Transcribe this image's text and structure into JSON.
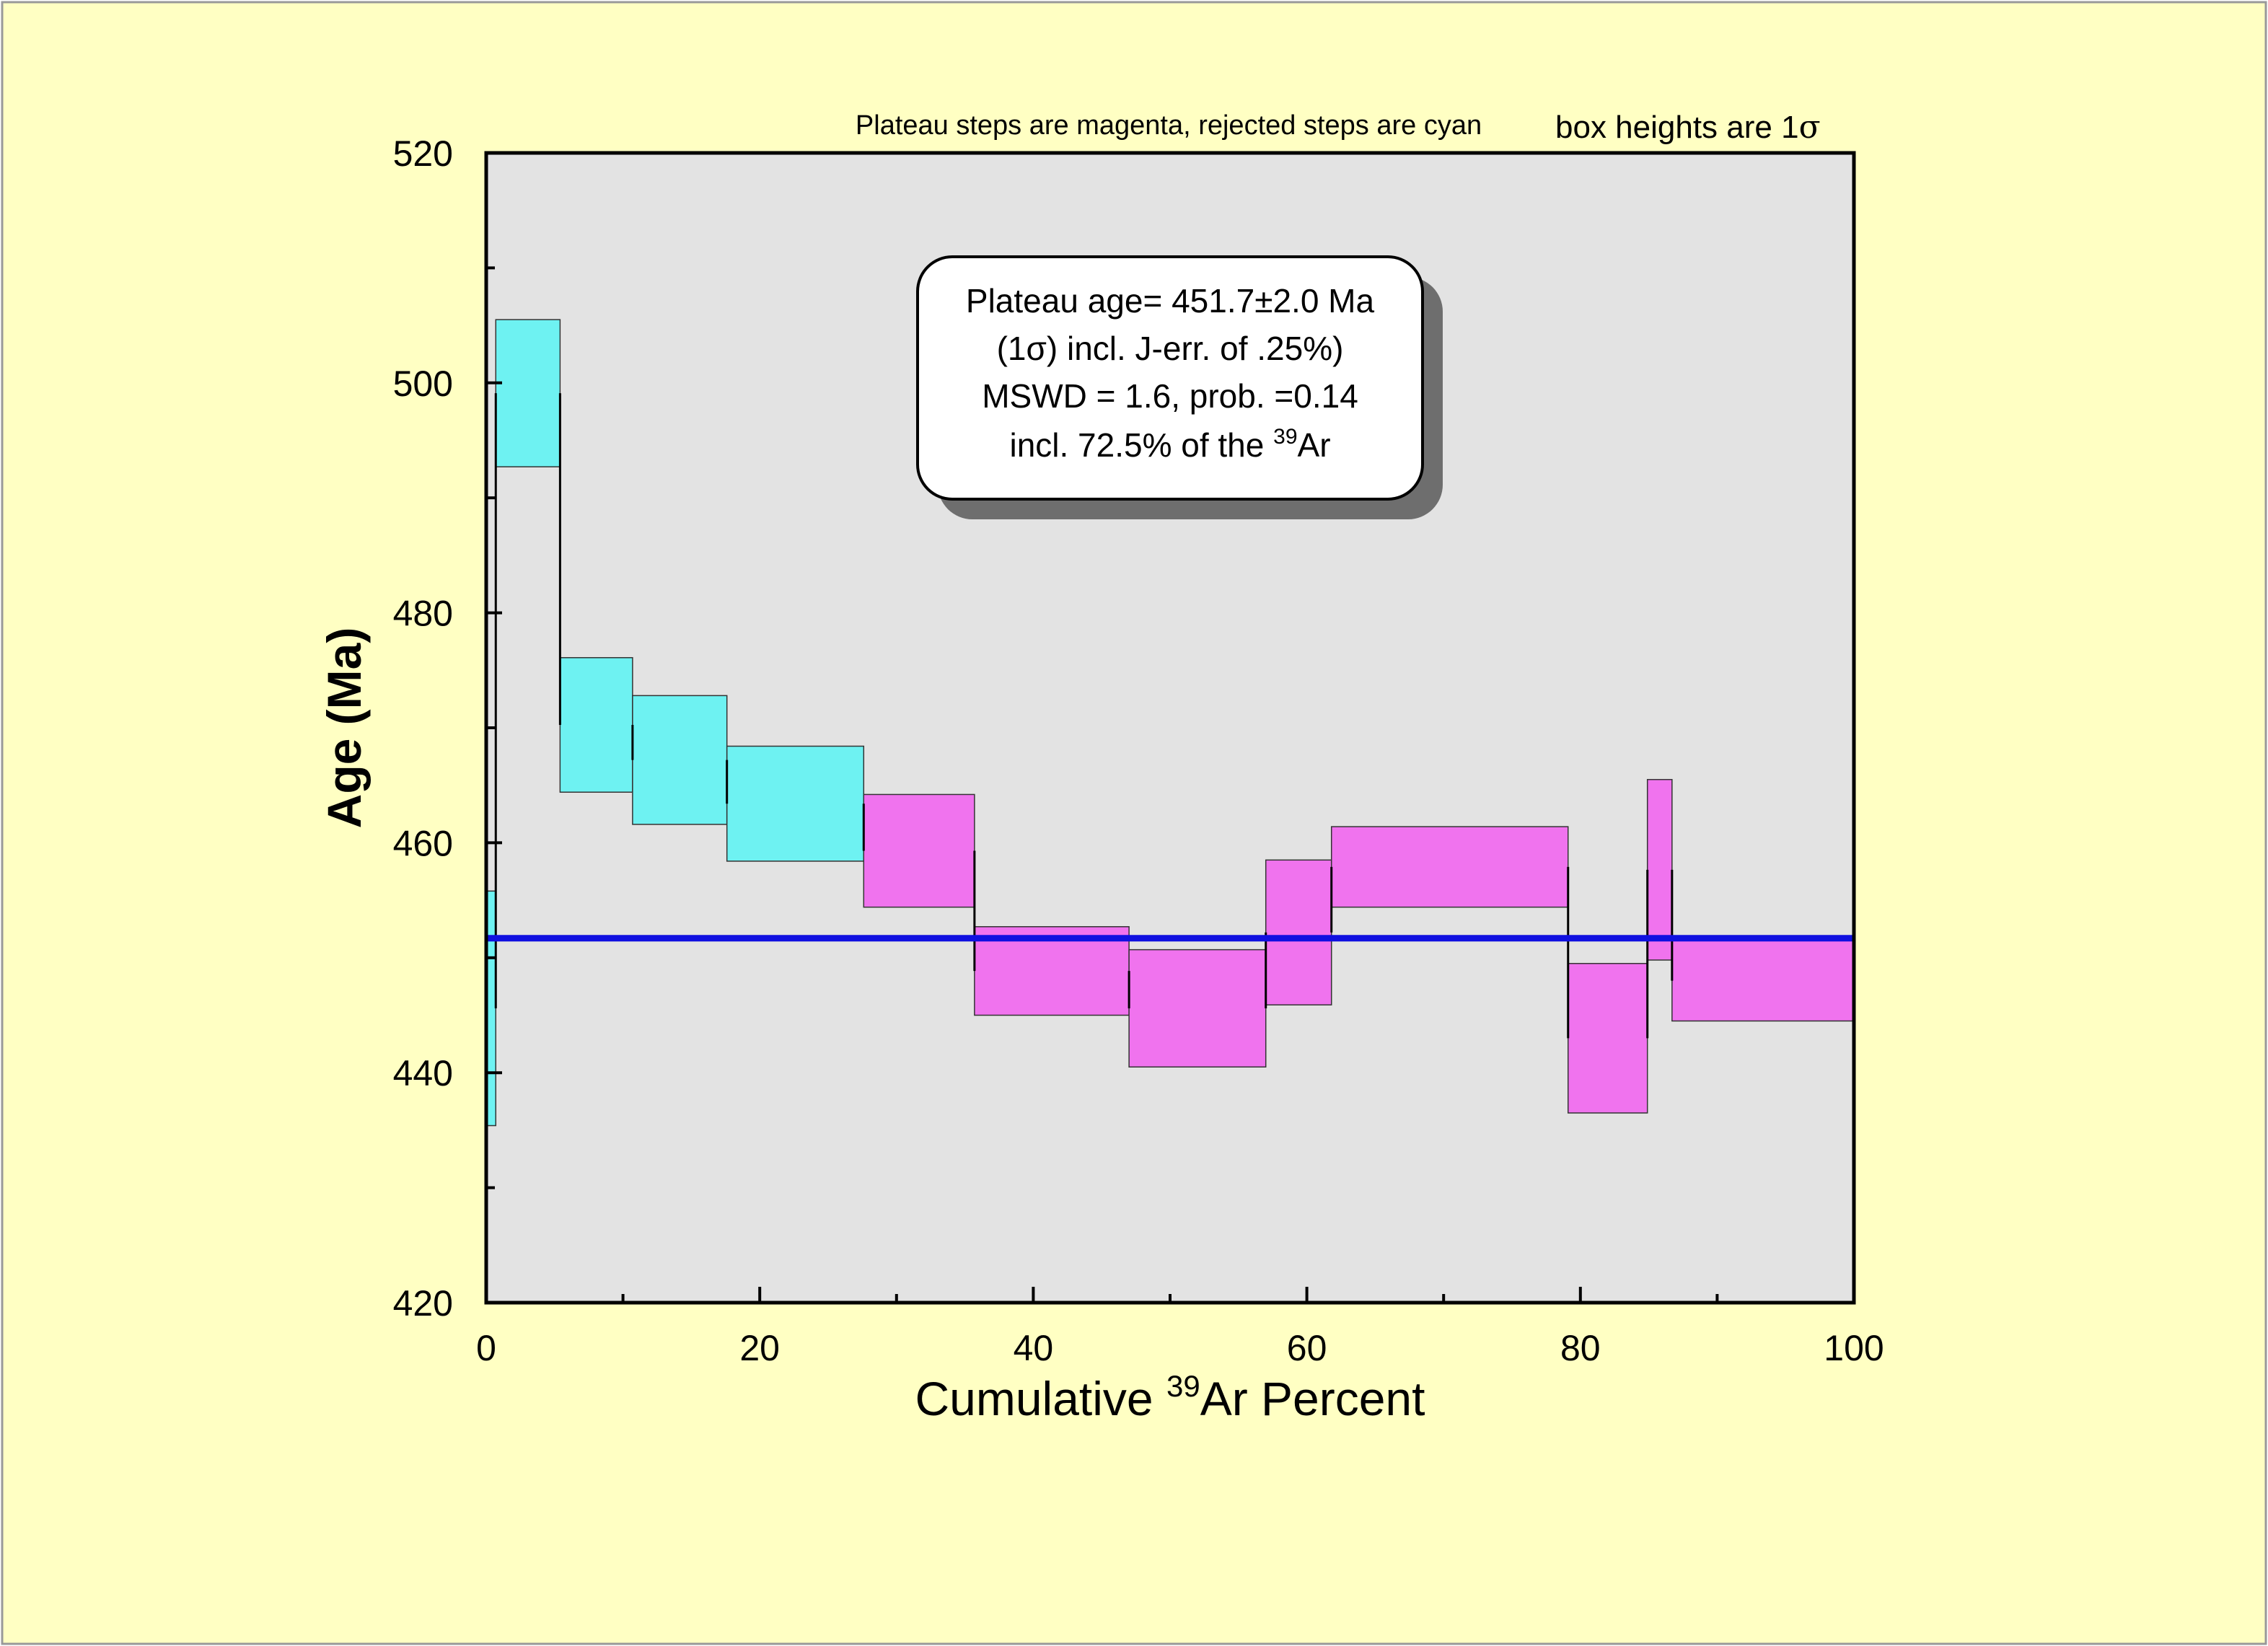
{
  "chart_data": {
    "type": "bar",
    "subtype": "argon-age-spectrum",
    "header_note_left": "Plateau steps are magenta, rejected steps are cyan",
    "header_note_right_prefix": "box heights are 1",
    "header_note_right_symbol": "σ",
    "xlabel_prefix": "Cumulative ",
    "xlabel_sup": "39",
    "xlabel_suffix": "Ar Percent",
    "ylabel": "Age (Ma)",
    "xlim": [
      0,
      100
    ],
    "ylim": [
      420,
      520
    ],
    "x_ticks": [
      "0",
      "20",
      "40",
      "60",
      "80",
      "100"
    ],
    "y_ticks": [
      "420",
      "440",
      "460",
      "480",
      "500",
      "520"
    ],
    "x_tick_values": [
      0,
      20,
      40,
      60,
      80,
      100
    ],
    "y_tick_values": [
      420,
      440,
      460,
      480,
      500,
      520
    ],
    "x_minor_step": 10,
    "y_minor_step": 10,
    "plateau_age": 451.7,
    "plateau_box": {
      "line1": "Plateau age= 451.7±2.0 Ma",
      "line2": "(1σ) incl. J-err. of .25%)",
      "line3": "MSWD = 1.6, prob. =0.14",
      "line4_prefix": "incl. 72.5% of the ",
      "line4_sup": "39",
      "line4_suffix": "Ar"
    },
    "steps": [
      {
        "x0": 0.0,
        "x1": 0.7,
        "y_low": 435.4,
        "y_high": 455.8,
        "status": "rejected"
      },
      {
        "x0": 0.7,
        "x1": 5.4,
        "y_low": 492.7,
        "y_high": 505.5,
        "status": "rejected"
      },
      {
        "x0": 5.4,
        "x1": 10.7,
        "y_low": 464.4,
        "y_high": 476.1,
        "status": "rejected"
      },
      {
        "x0": 10.7,
        "x1": 17.6,
        "y_low": 461.6,
        "y_high": 472.8,
        "status": "rejected"
      },
      {
        "x0": 17.6,
        "x1": 27.6,
        "y_low": 458.4,
        "y_high": 468.4,
        "status": "rejected"
      },
      {
        "x0": 27.6,
        "x1": 35.7,
        "y_low": 454.4,
        "y_high": 464.2,
        "status": "plateau"
      },
      {
        "x0": 35.7,
        "x1": 47.0,
        "y_low": 445.0,
        "y_high": 452.7,
        "status": "plateau"
      },
      {
        "x0": 47.0,
        "x1": 57.0,
        "y_low": 440.5,
        "y_high": 450.7,
        "status": "plateau"
      },
      {
        "x0": 57.0,
        "x1": 61.8,
        "y_low": 445.9,
        "y_high": 458.5,
        "status": "plateau"
      },
      {
        "x0": 61.8,
        "x1": 79.1,
        "y_low": 454.4,
        "y_high": 461.4,
        "status": "plateau"
      },
      {
        "x0": 79.1,
        "x1": 84.9,
        "y_low": 436.5,
        "y_high": 449.5,
        "status": "plateau"
      },
      {
        "x0": 84.9,
        "x1": 86.7,
        "y_low": 449.8,
        "y_high": 465.5,
        "status": "plateau"
      },
      {
        "x0": 86.7,
        "x1": 100.0,
        "y_low": 444.5,
        "y_high": 451.5,
        "status": "plateau"
      }
    ],
    "colors": {
      "page_background": "#FFFFC3",
      "plot_background": "#E3E3E3",
      "rejected": "#6EF2F2",
      "plateau": "#F073EE",
      "plateau_line": "#1010E0",
      "box_shadow": "#6E6E6E",
      "text": "#000000"
    }
  }
}
